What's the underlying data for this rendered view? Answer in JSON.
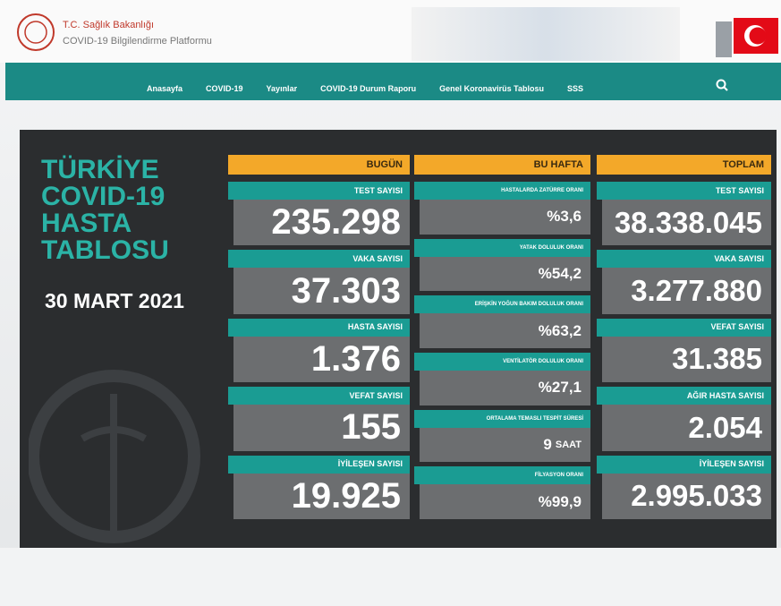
{
  "header": {
    "ministry": "T.C. Sağlık Bakanlığı",
    "platform": "COVID-19 Bilgilendirme Platformu"
  },
  "nav": [
    "Anasayfa",
    "COVID-19",
    "Yayınlar",
    "COVID-19 Durum Raporu",
    "Genel Koronavirüs Tablosu",
    "SSS"
  ],
  "panel": {
    "title": [
      "TÜRKİYE",
      "COVID-19",
      "HASTA",
      "TABLOSU"
    ],
    "date": "30 MART 2021",
    "columns": [
      {
        "header": "BUGÜN",
        "items": [
          {
            "label": "TEST SAYISI",
            "value": "235.298"
          },
          {
            "label": "VAKA SAYISI",
            "value": "37.303"
          },
          {
            "label": "HASTA SAYISI",
            "value": "1.376"
          },
          {
            "label": "VEFAT SAYISI",
            "value": "155"
          },
          {
            "label": "İYİLEŞEN SAYISI",
            "value": "19.925"
          }
        ]
      },
      {
        "header": "BU HAFTA",
        "items": [
          {
            "label": "HASTALARDA ZATÜRRE ORANI",
            "value": "%3,6"
          },
          {
            "label": "YATAK DOLULUK ORANI",
            "value": "%54,2"
          },
          {
            "label": "ERİŞKİN YOĞUN BAKIM DOLULUK ORANI",
            "value": "%63,2"
          },
          {
            "label": "VENTİLATÖR DOLULUK ORANI",
            "value": "%27,1"
          },
          {
            "label": "ORTALAMA TEMASLI TESPİT SÜRESİ",
            "value": "9",
            "unit": "SAAT"
          },
          {
            "label": "FİLYASYON ORANI",
            "value": "%99,9"
          }
        ]
      },
      {
        "header": "TOPLAM",
        "items": [
          {
            "label": "TEST SAYISI",
            "value": "38.338.045"
          },
          {
            "label": "VAKA SAYISI",
            "value": "3.277.880"
          },
          {
            "label": "VEFAT SAYISI",
            "value": "31.385"
          },
          {
            "label": "AĞIR HASTA SAYISI",
            "value": "2.054"
          },
          {
            "label": "İYİLEŞEN SAYISI",
            "value": "2.995.033"
          }
        ]
      }
    ]
  }
}
